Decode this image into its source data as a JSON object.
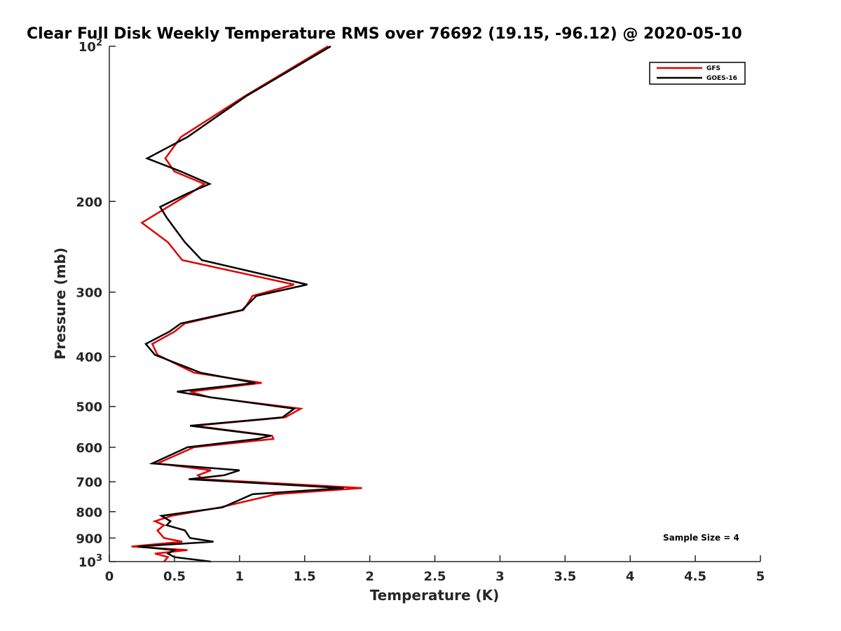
{
  "chart_data": {
    "type": "line",
    "title": "Clear Full Disk Weekly Temperature RMS over 76692 (19.15, -96.12) @ 2020-05-10",
    "xlabel": "Temperature (K)",
    "ylabel": "Pressure (mb)",
    "xlim": [
      0,
      5
    ],
    "ylim": [
      100,
      1000
    ],
    "yscale": "log",
    "y_reversed": true,
    "grid": false,
    "legend_location": "top-right",
    "x_ticks": [
      {
        "value": 0,
        "label": "0"
      },
      {
        "value": 0.5,
        "label": "0.5"
      },
      {
        "value": 1,
        "label": "1"
      },
      {
        "value": 1.5,
        "label": "1.5"
      },
      {
        "value": 2,
        "label": "2"
      },
      {
        "value": 2.5,
        "label": "2.5"
      },
      {
        "value": 3,
        "label": "3"
      },
      {
        "value": 3.5,
        "label": "3.5"
      },
      {
        "value": 4,
        "label": "4"
      },
      {
        "value": 4.5,
        "label": "4.5"
      },
      {
        "value": 5,
        "label": "5"
      }
    ],
    "y_ticks": [
      {
        "value": 100,
        "base": "10",
        "exp": "2"
      },
      {
        "value": 200,
        "label": "200"
      },
      {
        "value": 300,
        "label": "300"
      },
      {
        "value": 400,
        "label": "400"
      },
      {
        "value": 500,
        "label": "500"
      },
      {
        "value": 600,
        "label": "600"
      },
      {
        "value": 700,
        "label": "700"
      },
      {
        "value": 800,
        "label": "800"
      },
      {
        "value": 900,
        "label": "900"
      },
      {
        "value": 1000,
        "base": "10",
        "exp": "3"
      }
    ],
    "series": [
      {
        "name": "GFS",
        "color": "#e00000",
        "points": [
          [
            1.68,
            100
          ],
          [
            1.04,
            125
          ],
          [
            0.55,
            150
          ],
          [
            0.43,
            165
          ],
          [
            0.5,
            175
          ],
          [
            0.73,
            185
          ],
          [
            0.62,
            193
          ],
          [
            0.45,
            205
          ],
          [
            0.25,
            220
          ],
          [
            0.45,
            240
          ],
          [
            0.56,
            260
          ],
          [
            1.42,
            290
          ],
          [
            1.1,
            305
          ],
          [
            1.03,
            325
          ],
          [
            0.58,
            345
          ],
          [
            0.5,
            358
          ],
          [
            0.33,
            378
          ],
          [
            0.37,
            397
          ],
          [
            0.65,
            430
          ],
          [
            1.17,
            450
          ],
          [
            0.62,
            468
          ],
          [
            0.77,
            480
          ],
          [
            1.47,
            505
          ],
          [
            1.35,
            525
          ],
          [
            0.65,
            545
          ],
          [
            1.25,
            570
          ],
          [
            1.26,
            578
          ],
          [
            0.65,
            600
          ],
          [
            0.37,
            645
          ],
          [
            0.78,
            665
          ],
          [
            0.68,
            680
          ],
          [
            0.72,
            692
          ],
          [
            1.94,
            720
          ],
          [
            1.28,
            740
          ],
          [
            0.85,
            785
          ],
          [
            0.48,
            815
          ],
          [
            0.35,
            835
          ],
          [
            0.42,
            850
          ],
          [
            0.37,
            870
          ],
          [
            0.42,
            900
          ],
          [
            0.56,
            915
          ],
          [
            0.17,
            935
          ],
          [
            0.6,
            950
          ],
          [
            0.35,
            965
          ],
          [
            0.45,
            980
          ],
          [
            0.42,
            1000
          ]
        ]
      },
      {
        "name": "GOES-16",
        "color": "#000000",
        "points": [
          [
            1.7,
            100
          ],
          [
            1.05,
            125
          ],
          [
            0.6,
            150
          ],
          [
            0.29,
            165
          ],
          [
            0.55,
            175
          ],
          [
            0.77,
            185
          ],
          [
            0.6,
            193
          ],
          [
            0.39,
            205
          ],
          [
            0.44,
            215
          ],
          [
            0.58,
            240
          ],
          [
            0.71,
            260
          ],
          [
            1.52,
            290
          ],
          [
            1.13,
            305
          ],
          [
            1.02,
            325
          ],
          [
            0.55,
            345
          ],
          [
            0.46,
            358
          ],
          [
            0.28,
            378
          ],
          [
            0.35,
            397
          ],
          [
            0.7,
            430
          ],
          [
            1.12,
            450
          ],
          [
            0.52,
            468
          ],
          [
            0.78,
            480
          ],
          [
            1.42,
            505
          ],
          [
            1.33,
            525
          ],
          [
            0.62,
            545
          ],
          [
            1.24,
            570
          ],
          [
            1.14,
            578
          ],
          [
            0.6,
            600
          ],
          [
            0.33,
            645
          ],
          [
            1.0,
            665
          ],
          [
            0.88,
            680
          ],
          [
            0.61,
            692
          ],
          [
            1.8,
            720
          ],
          [
            1.1,
            740
          ],
          [
            0.87,
            785
          ],
          [
            0.4,
            815
          ],
          [
            0.47,
            835
          ],
          [
            0.44,
            850
          ],
          [
            0.58,
            870
          ],
          [
            0.62,
            900
          ],
          [
            0.8,
            915
          ],
          [
            0.22,
            935
          ],
          [
            0.5,
            950
          ],
          [
            0.45,
            965
          ],
          [
            0.5,
            980
          ],
          [
            0.78,
            1000
          ]
        ]
      }
    ],
    "annotations": [
      {
        "text": "Sample Size = 4",
        "location": "bottom-right"
      }
    ]
  }
}
